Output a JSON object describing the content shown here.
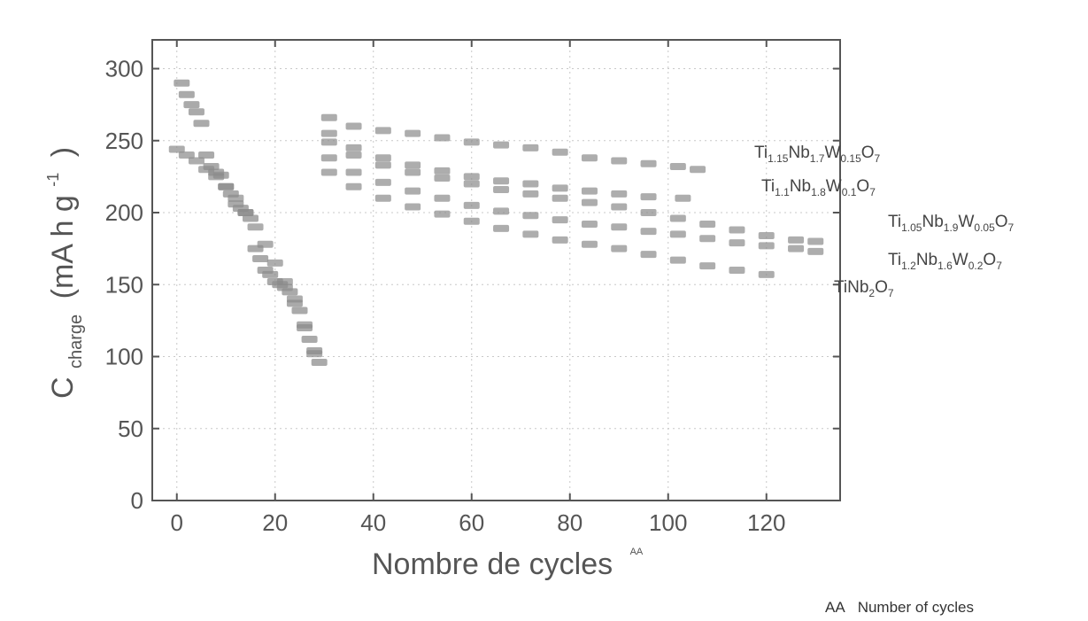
{
  "chart_data": {
    "type": "scatter",
    "xlabel": "Nombre de cycles",
    "xlabel_marker": "AA",
    "ylabel": {
      "main": "C",
      "sub": "charge",
      "units": "(mA h g",
      "units_sup": "-1",
      "units_close": ")"
    },
    "xlim": [
      -5,
      135
    ],
    "ylim": [
      0,
      320
    ],
    "xticks": [
      0,
      20,
      40,
      60,
      80,
      100,
      120
    ],
    "yticks": [
      0,
      50,
      100,
      150,
      200,
      250,
      300
    ],
    "grid": true,
    "series": [
      {
        "name": "Ti1.15Nb1.7W0.15O7",
        "label_parts": [
          [
            "Ti",
            ""
          ],
          [
            "1.15",
            "sub"
          ],
          [
            "Nb",
            ""
          ],
          [
            "1.7",
            "sub"
          ],
          [
            "W",
            ""
          ],
          [
            "0.15",
            "sub"
          ],
          [
            "O",
            ""
          ],
          [
            "7",
            "sub"
          ]
        ],
        "x": [
          31,
          36,
          42,
          48,
          54,
          60,
          66,
          72,
          78,
          84,
          90,
          96,
          102,
          106
        ],
        "y": [
          266,
          260,
          257,
          255,
          252,
          249,
          247,
          245,
          242,
          238,
          236,
          234,
          232,
          230
        ]
      },
      {
        "name": "Ti1.1Nb1.8W0.1O7",
        "label_parts": [
          [
            "Ti",
            ""
          ],
          [
            "1.1",
            "sub"
          ],
          [
            "Nb",
            ""
          ],
          [
            "1.8",
            "sub"
          ],
          [
            "W",
            ""
          ],
          [
            "0.1",
            "sub"
          ],
          [
            "O",
            ""
          ],
          [
            "7",
            "sub"
          ]
        ],
        "x": [
          31,
          36,
          42,
          48,
          54,
          60,
          66,
          72,
          78,
          84,
          90,
          96,
          103
        ],
        "y": [
          255,
          245,
          238,
          233,
          229,
          225,
          222,
          220,
          217,
          215,
          213,
          211,
          210
        ]
      },
      {
        "name": "Ti1.05Nb1.9W0.05O7",
        "label_parts": [
          [
            "Ti",
            ""
          ],
          [
            "1.05",
            "sub"
          ],
          [
            "Nb",
            ""
          ],
          [
            "1.9",
            "sub"
          ],
          [
            "W",
            ""
          ],
          [
            "0.05",
            "sub"
          ],
          [
            "O",
            ""
          ],
          [
            "7",
            "sub"
          ]
        ],
        "x": [
          31,
          36,
          42,
          48,
          54,
          60,
          66,
          72,
          78,
          84,
          90,
          96,
          102,
          108,
          114,
          120,
          126,
          130
        ],
        "y": [
          249,
          240,
          233,
          228,
          224,
          220,
          216,
          213,
          210,
          207,
          204,
          200,
          196,
          192,
          188,
          184,
          181,
          180
        ]
      },
      {
        "name": "Ti1.2Nb1.6W0.2O7",
        "label_parts": [
          [
            "Ti",
            ""
          ],
          [
            "1.2",
            "sub"
          ],
          [
            "Nb",
            ""
          ],
          [
            "1.6",
            "sub"
          ],
          [
            "W",
            ""
          ],
          [
            "0.2",
            "sub"
          ],
          [
            "O",
            ""
          ],
          [
            "7",
            "sub"
          ]
        ],
        "x": [
          31,
          36,
          42,
          48,
          54,
          60,
          66,
          72,
          78,
          84,
          90,
          96,
          102,
          108,
          114,
          120,
          126,
          130
        ],
        "y": [
          238,
          228,
          221,
          215,
          210,
          205,
          201,
          198,
          195,
          192,
          190,
          187,
          185,
          182,
          179,
          177,
          175,
          173
        ]
      },
      {
        "name": "TiNb2O7",
        "label_parts": [
          [
            "TiNb",
            ""
          ],
          [
            "2",
            "sub"
          ],
          [
            "O",
            ""
          ],
          [
            "7",
            "sub"
          ]
        ],
        "x": [
          0,
          2,
          4,
          6,
          8,
          10,
          12,
          14,
          16,
          18,
          20,
          22,
          24,
          26,
          28,
          31,
          36,
          42,
          48,
          54,
          60,
          66,
          72,
          78,
          84,
          90,
          96,
          102,
          108,
          114,
          120
        ],
        "y": [
          244,
          240,
          236,
          230,
          225,
          218,
          210,
          200,
          190,
          178,
          165,
          152,
          140,
          122,
          102,
          228,
          218,
          210,
          204,
          199,
          194,
          189,
          185,
          181,
          178,
          175,
          171,
          167,
          163,
          160,
          157
        ]
      }
    ],
    "early_points": {
      "x": [
        1,
        2,
        3,
        4,
        5,
        6,
        7,
        8,
        9,
        10,
        11,
        12,
        13,
        14,
        15,
        16,
        17,
        18,
        19,
        20,
        21,
        22,
        23,
        24,
        25,
        26,
        27,
        28,
        29
      ],
      "y": [
        290,
        282,
        275,
        270,
        262,
        240,
        232,
        228,
        226,
        218,
        213,
        206,
        203,
        200,
        196,
        175,
        168,
        160,
        157,
        152,
        150,
        148,
        145,
        137,
        132,
        120,
        112,
        104,
        96
      ]
    }
  },
  "footnote": {
    "marker": "AA",
    "text": "Number of cycles"
  }
}
